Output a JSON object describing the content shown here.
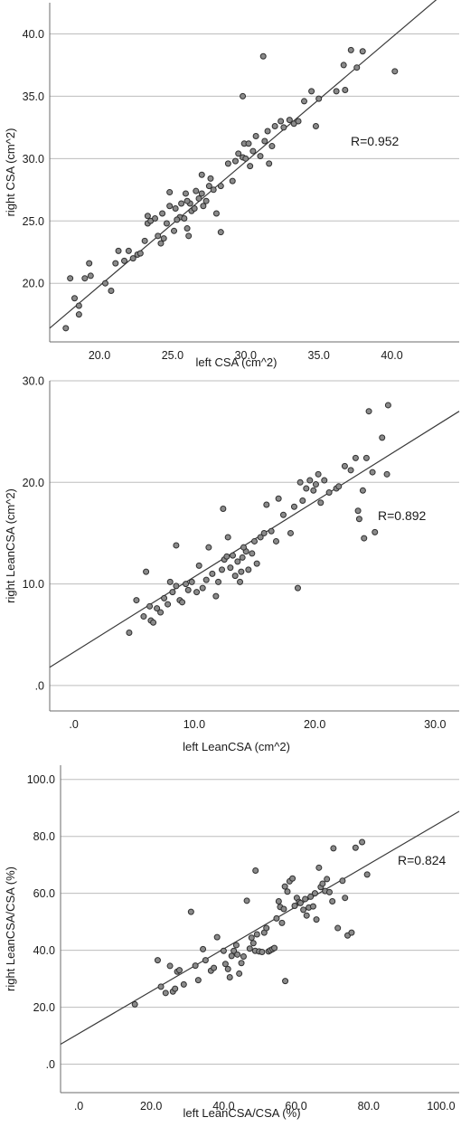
{
  "chart_data": [
    {
      "type": "scatter",
      "xlabel": "left CSA (cm^2)",
      "ylabel": "right CSA (cm^2)",
      "annotation": "R=0.952",
      "xlim": [
        16.6,
        44.6
      ],
      "ylim": [
        15.3,
        42.5
      ],
      "xticks": [
        20,
        25,
        30,
        35,
        40
      ],
      "yticks": [
        20,
        25,
        30,
        35,
        40
      ],
      "xtick_labels": [
        "20.0",
        "25.0",
        "30.0",
        "35.0",
        "40.0"
      ],
      "ytick_labels": [
        "20.0",
        "25.0",
        "30.0",
        "35.0",
        "40.0"
      ],
      "grid": "horizontal",
      "fit_line": [
        [
          16.6,
          16.4
        ],
        [
          44.6,
          44.3
        ]
      ],
      "points": [
        [
          17.7,
          16.4
        ],
        [
          18.0,
          20.4
        ],
        [
          18.3,
          18.8
        ],
        [
          18.6,
          17.5
        ],
        [
          18.6,
          18.2
        ],
        [
          19.0,
          20.4
        ],
        [
          19.3,
          21.6
        ],
        [
          19.4,
          20.6
        ],
        [
          20.4,
          20.0
        ],
        [
          20.8,
          19.4
        ],
        [
          21.1,
          21.6
        ],
        [
          21.3,
          22.6
        ],
        [
          21.7,
          21.8
        ],
        [
          22.0,
          22.6
        ],
        [
          22.3,
          22.0
        ],
        [
          22.6,
          22.3
        ],
        [
          22.8,
          22.4
        ],
        [
          23.1,
          23.4
        ],
        [
          23.3,
          24.8
        ],
        [
          23.3,
          25.4
        ],
        [
          23.5,
          25.0
        ],
        [
          23.8,
          25.2
        ],
        [
          24.0,
          23.8
        ],
        [
          24.2,
          23.2
        ],
        [
          24.4,
          23.6
        ],
        [
          24.3,
          25.6
        ],
        [
          24.6,
          24.8
        ],
        [
          24.8,
          26.2
        ],
        [
          24.8,
          27.3
        ],
        [
          25.1,
          24.2
        ],
        [
          25.2,
          26.0
        ],
        [
          25.5,
          25.3
        ],
        [
          25.6,
          26.4
        ],
        [
          25.8,
          25.2
        ],
        [
          25.9,
          27.2
        ],
        [
          26.0,
          24.4
        ],
        [
          26.1,
          23.8
        ],
        [
          26.2,
          26.4
        ],
        [
          26.3,
          25.8
        ],
        [
          26.5,
          26.0
        ],
        [
          26.6,
          27.4
        ],
        [
          26.8,
          26.8
        ],
        [
          27.0,
          27.2
        ],
        [
          27.0,
          28.7
        ],
        [
          27.3,
          26.6
        ],
        [
          27.5,
          27.8
        ],
        [
          27.6,
          28.4
        ],
        [
          27.8,
          27.5
        ],
        [
          28.0,
          25.6
        ],
        [
          28.3,
          24.1
        ],
        [
          28.3,
          27.8
        ],
        [
          28.8,
          29.6
        ],
        [
          29.1,
          28.2
        ],
        [
          29.3,
          29.8
        ],
        [
          29.5,
          30.4
        ],
        [
          29.8,
          30.1
        ],
        [
          29.9,
          31.2
        ],
        [
          30.0,
          30.0
        ],
        [
          30.2,
          31.2
        ],
        [
          30.3,
          29.4
        ],
        [
          30.5,
          30.6
        ],
        [
          30.7,
          31.8
        ],
        [
          31.0,
          30.2
        ],
        [
          31.3,
          31.4
        ],
        [
          31.5,
          32.2
        ],
        [
          31.6,
          29.6
        ],
        [
          31.8,
          31.0
        ],
        [
          32.0,
          32.6
        ],
        [
          32.4,
          33.0
        ],
        [
          32.6,
          32.5
        ],
        [
          33.0,
          33.1
        ],
        [
          33.3,
          32.8
        ],
        [
          33.6,
          33.0
        ],
        [
          34.0,
          34.6
        ],
        [
          34.5,
          35.4
        ],
        [
          34.8,
          32.6
        ],
        [
          35.0,
          34.8
        ],
        [
          36.2,
          35.4
        ],
        [
          36.8,
          35.5
        ],
        [
          36.7,
          37.5
        ],
        [
          37.2,
          38.7
        ],
        [
          37.6,
          37.3
        ],
        [
          38.0,
          38.6
        ],
        [
          40.2,
          37.0
        ],
        [
          29.8,
          35.0
        ],
        [
          31.2,
          38.2
        ],
        [
          26.0,
          26.6
        ],
        [
          25.3,
          25.1
        ],
        [
          27.1,
          26.2
        ]
      ]
    },
    {
      "type": "scatter",
      "xlabel": "left LeanCSA (cm^2)",
      "ylabel": "right LeanCSA (cm^2)",
      "annotation": "R=0.892",
      "xlim": [
        -2.0,
        32.0
      ],
      "ylim": [
        -2.5,
        30.0
      ],
      "xticks": [
        0,
        10,
        20,
        30
      ],
      "yticks": [
        0,
        10,
        20,
        30
      ],
      "xtick_labels": [
        ".0",
        "10.0",
        "20.0",
        "30.0"
      ],
      "ytick_labels": [
        ".0",
        "10.0",
        "20.0",
        "30.0"
      ],
      "grid": "horizontal",
      "fit_line": [
        [
          -2.0,
          1.8
        ],
        [
          32.0,
          27.0
        ]
      ],
      "points": [
        [
          4.6,
          5.2
        ],
        [
          5.2,
          8.4
        ],
        [
          5.8,
          6.8
        ],
        [
          6.0,
          11.2
        ],
        [
          6.3,
          7.8
        ],
        [
          6.4,
          6.4
        ],
        [
          6.6,
          6.2
        ],
        [
          6.9,
          7.6
        ],
        [
          7.2,
          7.2
        ],
        [
          7.5,
          8.6
        ],
        [
          7.8,
          8.0
        ],
        [
          8.0,
          10.2
        ],
        [
          8.2,
          9.2
        ],
        [
          8.5,
          9.8
        ],
        [
          8.5,
          13.8
        ],
        [
          8.8,
          8.4
        ],
        [
          9.0,
          8.2
        ],
        [
          9.3,
          10.0
        ],
        [
          9.5,
          9.4
        ],
        [
          9.8,
          10.2
        ],
        [
          10.2,
          9.2
        ],
        [
          10.4,
          11.8
        ],
        [
          10.7,
          9.6
        ],
        [
          11.0,
          10.4
        ],
        [
          11.2,
          13.6
        ],
        [
          11.5,
          11.0
        ],
        [
          11.8,
          8.8
        ],
        [
          12.0,
          10.2
        ],
        [
          12.3,
          11.4
        ],
        [
          12.4,
          17.4
        ],
        [
          12.5,
          12.4
        ],
        [
          12.8,
          14.6
        ],
        [
          13.0,
          11.6
        ],
        [
          13.2,
          12.8
        ],
        [
          13.4,
          10.8
        ],
        [
          13.6,
          12.2
        ],
        [
          13.8,
          10.2
        ],
        [
          14.0,
          12.6
        ],
        [
          14.3,
          13.2
        ],
        [
          14.5,
          11.4
        ],
        [
          14.8,
          13.0
        ],
        [
          15.0,
          14.2
        ],
        [
          15.2,
          12.0
        ],
        [
          15.5,
          14.6
        ],
        [
          15.8,
          15.0
        ],
        [
          16.0,
          17.8
        ],
        [
          16.4,
          15.2
        ],
        [
          16.8,
          14.2
        ],
        [
          17.0,
          18.4
        ],
        [
          17.4,
          16.8
        ],
        [
          18.0,
          15.0
        ],
        [
          18.3,
          17.6
        ],
        [
          18.6,
          9.6
        ],
        [
          18.8,
          20.0
        ],
        [
          19.0,
          18.2
        ],
        [
          19.3,
          19.4
        ],
        [
          19.6,
          20.2
        ],
        [
          19.9,
          19.2
        ],
        [
          20.1,
          19.8
        ],
        [
          20.3,
          20.8
        ],
        [
          20.5,
          18.0
        ],
        [
          20.8,
          20.2
        ],
        [
          21.2,
          19.0
        ],
        [
          21.8,
          19.4
        ],
        [
          22.0,
          19.6
        ],
        [
          22.5,
          21.6
        ],
        [
          23.0,
          21.2
        ],
        [
          23.4,
          22.4
        ],
        [
          23.6,
          17.2
        ],
        [
          23.7,
          16.4
        ],
        [
          24.0,
          19.2
        ],
        [
          24.1,
          14.5
        ],
        [
          24.3,
          22.4
        ],
        [
          24.5,
          27.0
        ],
        [
          24.8,
          21.0
        ],
        [
          25.0,
          15.1
        ],
        [
          25.6,
          24.4
        ],
        [
          26.1,
          27.6
        ],
        [
          26.0,
          20.8
        ],
        [
          13.9,
          11.2
        ],
        [
          12.7,
          12.7
        ],
        [
          14.1,
          13.6
        ]
      ]
    },
    {
      "type": "scatter",
      "xlabel": "left LeanCSA/CSA (%)",
      "ylabel": "right LeanCSA/CSA (%)",
      "annotation": "R=0.824",
      "xlim": [
        -5.0,
        105.0
      ],
      "ylim": [
        -10.0,
        105.0
      ],
      "xticks": [
        0,
        20,
        40,
        60,
        80,
        100
      ],
      "yticks": [
        0,
        20,
        40,
        60,
        80,
        100
      ],
      "xtick_labels": [
        ".0",
        "20.0",
        "40.0",
        "60.0",
        "80.0",
        "100.0"
      ],
      "ytick_labels": [
        ".0",
        "20.0",
        "40.0",
        "60.0",
        "80.0",
        "100.0"
      ],
      "grid": "horizontal",
      "fit_line": [
        [
          -5.0,
          7.0
        ],
        [
          105.0,
          88.8
        ]
      ],
      "points": [
        [
          15.5,
          21.0
        ],
        [
          21.8,
          36.5
        ],
        [
          22.7,
          27.2
        ],
        [
          24.0,
          25.0
        ],
        [
          25.2,
          34.5
        ],
        [
          26.0,
          25.5
        ],
        [
          26.6,
          26.5
        ],
        [
          27.2,
          32.5
        ],
        [
          27.8,
          33.0
        ],
        [
          29.0,
          28.0
        ],
        [
          31.0,
          53.5
        ],
        [
          32.2,
          34.6
        ],
        [
          33.0,
          29.5
        ],
        [
          34.3,
          40.4
        ],
        [
          35.0,
          36.5
        ],
        [
          36.5,
          32.8
        ],
        [
          37.3,
          33.8
        ],
        [
          38.2,
          44.6
        ],
        [
          40.0,
          39.8
        ],
        [
          40.5,
          35.2
        ],
        [
          41.2,
          33.4
        ],
        [
          41.7,
          30.5
        ],
        [
          42.2,
          38.0
        ],
        [
          42.8,
          39.8
        ],
        [
          43.5,
          41.8
        ],
        [
          43.8,
          38.5
        ],
        [
          44.3,
          31.8
        ],
        [
          44.9,
          35.5
        ],
        [
          45.5,
          37.8
        ],
        [
          46.4,
          57.4
        ],
        [
          47.2,
          40.6
        ],
        [
          47.7,
          44.4
        ],
        [
          48.2,
          42.5
        ],
        [
          48.7,
          39.8
        ],
        [
          48.8,
          68.0
        ],
        [
          49.2,
          45.6
        ],
        [
          49.8,
          39.6
        ],
        [
          50.6,
          39.4
        ],
        [
          51.2,
          46.2
        ],
        [
          51.8,
          47.8
        ],
        [
          52.4,
          39.6
        ],
        [
          52.9,
          40.0
        ],
        [
          53.5,
          40.4
        ],
        [
          54.0,
          40.8
        ],
        [
          54.6,
          51.2
        ],
        [
          55.2,
          57.2
        ],
        [
          55.6,
          55.2
        ],
        [
          56.1,
          49.6
        ],
        [
          56.6,
          54.5
        ],
        [
          56.9,
          62.4
        ],
        [
          57.0,
          29.2
        ],
        [
          57.6,
          60.6
        ],
        [
          58.2,
          64.2
        ],
        [
          59.0,
          65.2
        ],
        [
          59.6,
          55.6
        ],
        [
          60.2,
          58.4
        ],
        [
          60.8,
          57.0
        ],
        [
          61.2,
          56.6
        ],
        [
          62.0,
          54.2
        ],
        [
          62.5,
          58.0
        ],
        [
          62.9,
          52.2
        ],
        [
          63.5,
          55.0
        ],
        [
          64.0,
          58.8
        ],
        [
          64.7,
          55.4
        ],
        [
          65.2,
          60.0
        ],
        [
          65.6,
          50.8
        ],
        [
          66.3,
          69.0
        ],
        [
          66.8,
          62.2
        ],
        [
          67.3,
          63.4
        ],
        [
          68.0,
          60.8
        ],
        [
          68.5,
          65.0
        ],
        [
          69.2,
          60.4
        ],
        [
          70.0,
          57.2
        ],
        [
          70.3,
          75.8
        ],
        [
          71.5,
          47.8
        ],
        [
          72.8,
          64.4
        ],
        [
          73.5,
          58.4
        ],
        [
          74.2,
          45.2
        ],
        [
          75.3,
          46.2
        ],
        [
          76.4,
          76.0
        ],
        [
          78.2,
          78.0
        ],
        [
          79.6,
          66.6
        ]
      ]
    }
  ]
}
